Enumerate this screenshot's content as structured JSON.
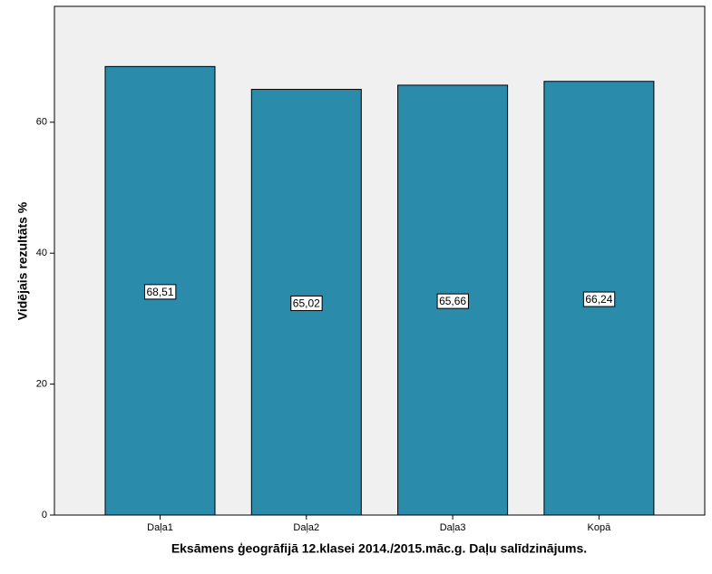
{
  "chart_data": {
    "type": "bar",
    "x_label": "Eksāmens ģeogrāfijā 12.klasei 2014./2015.māc.g. Daļu salīdzinājums.",
    "y_label": "Vidējais rezultāts %",
    "categories": [
      "Daļa1",
      "Daļa2",
      "Daļa3",
      "Kopā"
    ],
    "values": [
      68.51,
      65.02,
      65.66,
      66.24
    ],
    "value_labels": [
      "68,51",
      "65,02",
      "65,66",
      "66,24"
    ],
    "color": "#2a8bab",
    "ylim": [
      0,
      77.7
    ],
    "yticks": [
      0,
      20,
      40,
      60
    ]
  }
}
